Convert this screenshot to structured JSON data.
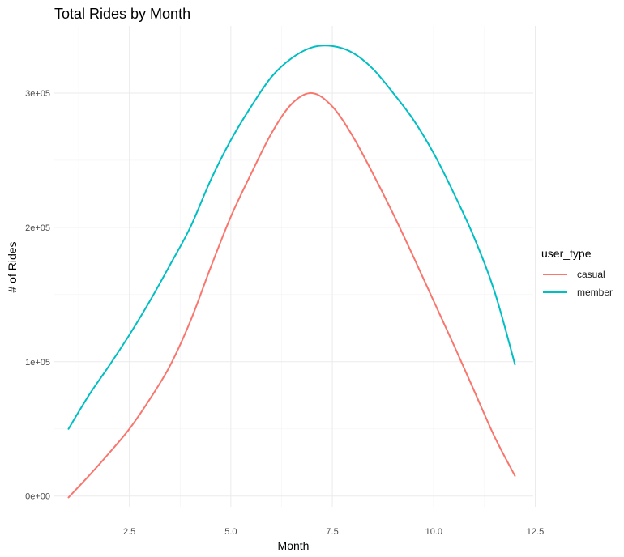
{
  "chart_data": {
    "type": "line",
    "title": "Total Rides by Month",
    "xlabel": "Month",
    "ylabel": "# of Rides",
    "xlim": [
      0.65,
      12.45
    ],
    "ylim": [
      -8000,
      350000
    ],
    "x_ticks": [
      2.5,
      5.0,
      7.5,
      10.0,
      12.5
    ],
    "x_tick_labels": [
      "2.5",
      "5.0",
      "7.5",
      "10.0",
      "12.5"
    ],
    "y_ticks": [
      0,
      100000,
      200000,
      300000
    ],
    "y_tick_labels": [
      "0e+00",
      "1e+05",
      "2e+05",
      "3e+05"
    ],
    "grid": true,
    "legend": {
      "title": "user_type",
      "position": "right"
    },
    "series": [
      {
        "name": "casual",
        "color": "#f8766d",
        "x": [
          1,
          1.5,
          2,
          2.5,
          3,
          3.5,
          4,
          4.5,
          5,
          5.5,
          6,
          6.5,
          7,
          7.5,
          8,
          8.5,
          9,
          9.5,
          10,
          10.5,
          11,
          11.5,
          12
        ],
        "y": [
          -1000,
          15000,
          32000,
          50000,
          72000,
          97000,
          130000,
          170000,
          208000,
          240000,
          270000,
          292000,
          300000,
          290000,
          268000,
          240000,
          210000,
          178000,
          145000,
          112000,
          78000,
          44000,
          15000
        ]
      },
      {
        "name": "member",
        "color": "#00bfc4",
        "x": [
          1,
          1.5,
          2,
          2.5,
          3,
          3.5,
          4,
          4.5,
          5,
          5.5,
          6,
          6.5,
          7,
          7.5,
          8,
          8.5,
          9,
          9.5,
          10,
          10.5,
          11,
          11.5,
          12
        ],
        "y": [
          50000,
          75000,
          97000,
          120000,
          145000,
          172000,
          200000,
          235000,
          265000,
          290000,
          312000,
          326000,
          334000,
          335000,
          330000,
          318000,
          300000,
          280000,
          255000,
          225000,
          192000,
          152000,
          98000
        ]
      }
    ]
  }
}
